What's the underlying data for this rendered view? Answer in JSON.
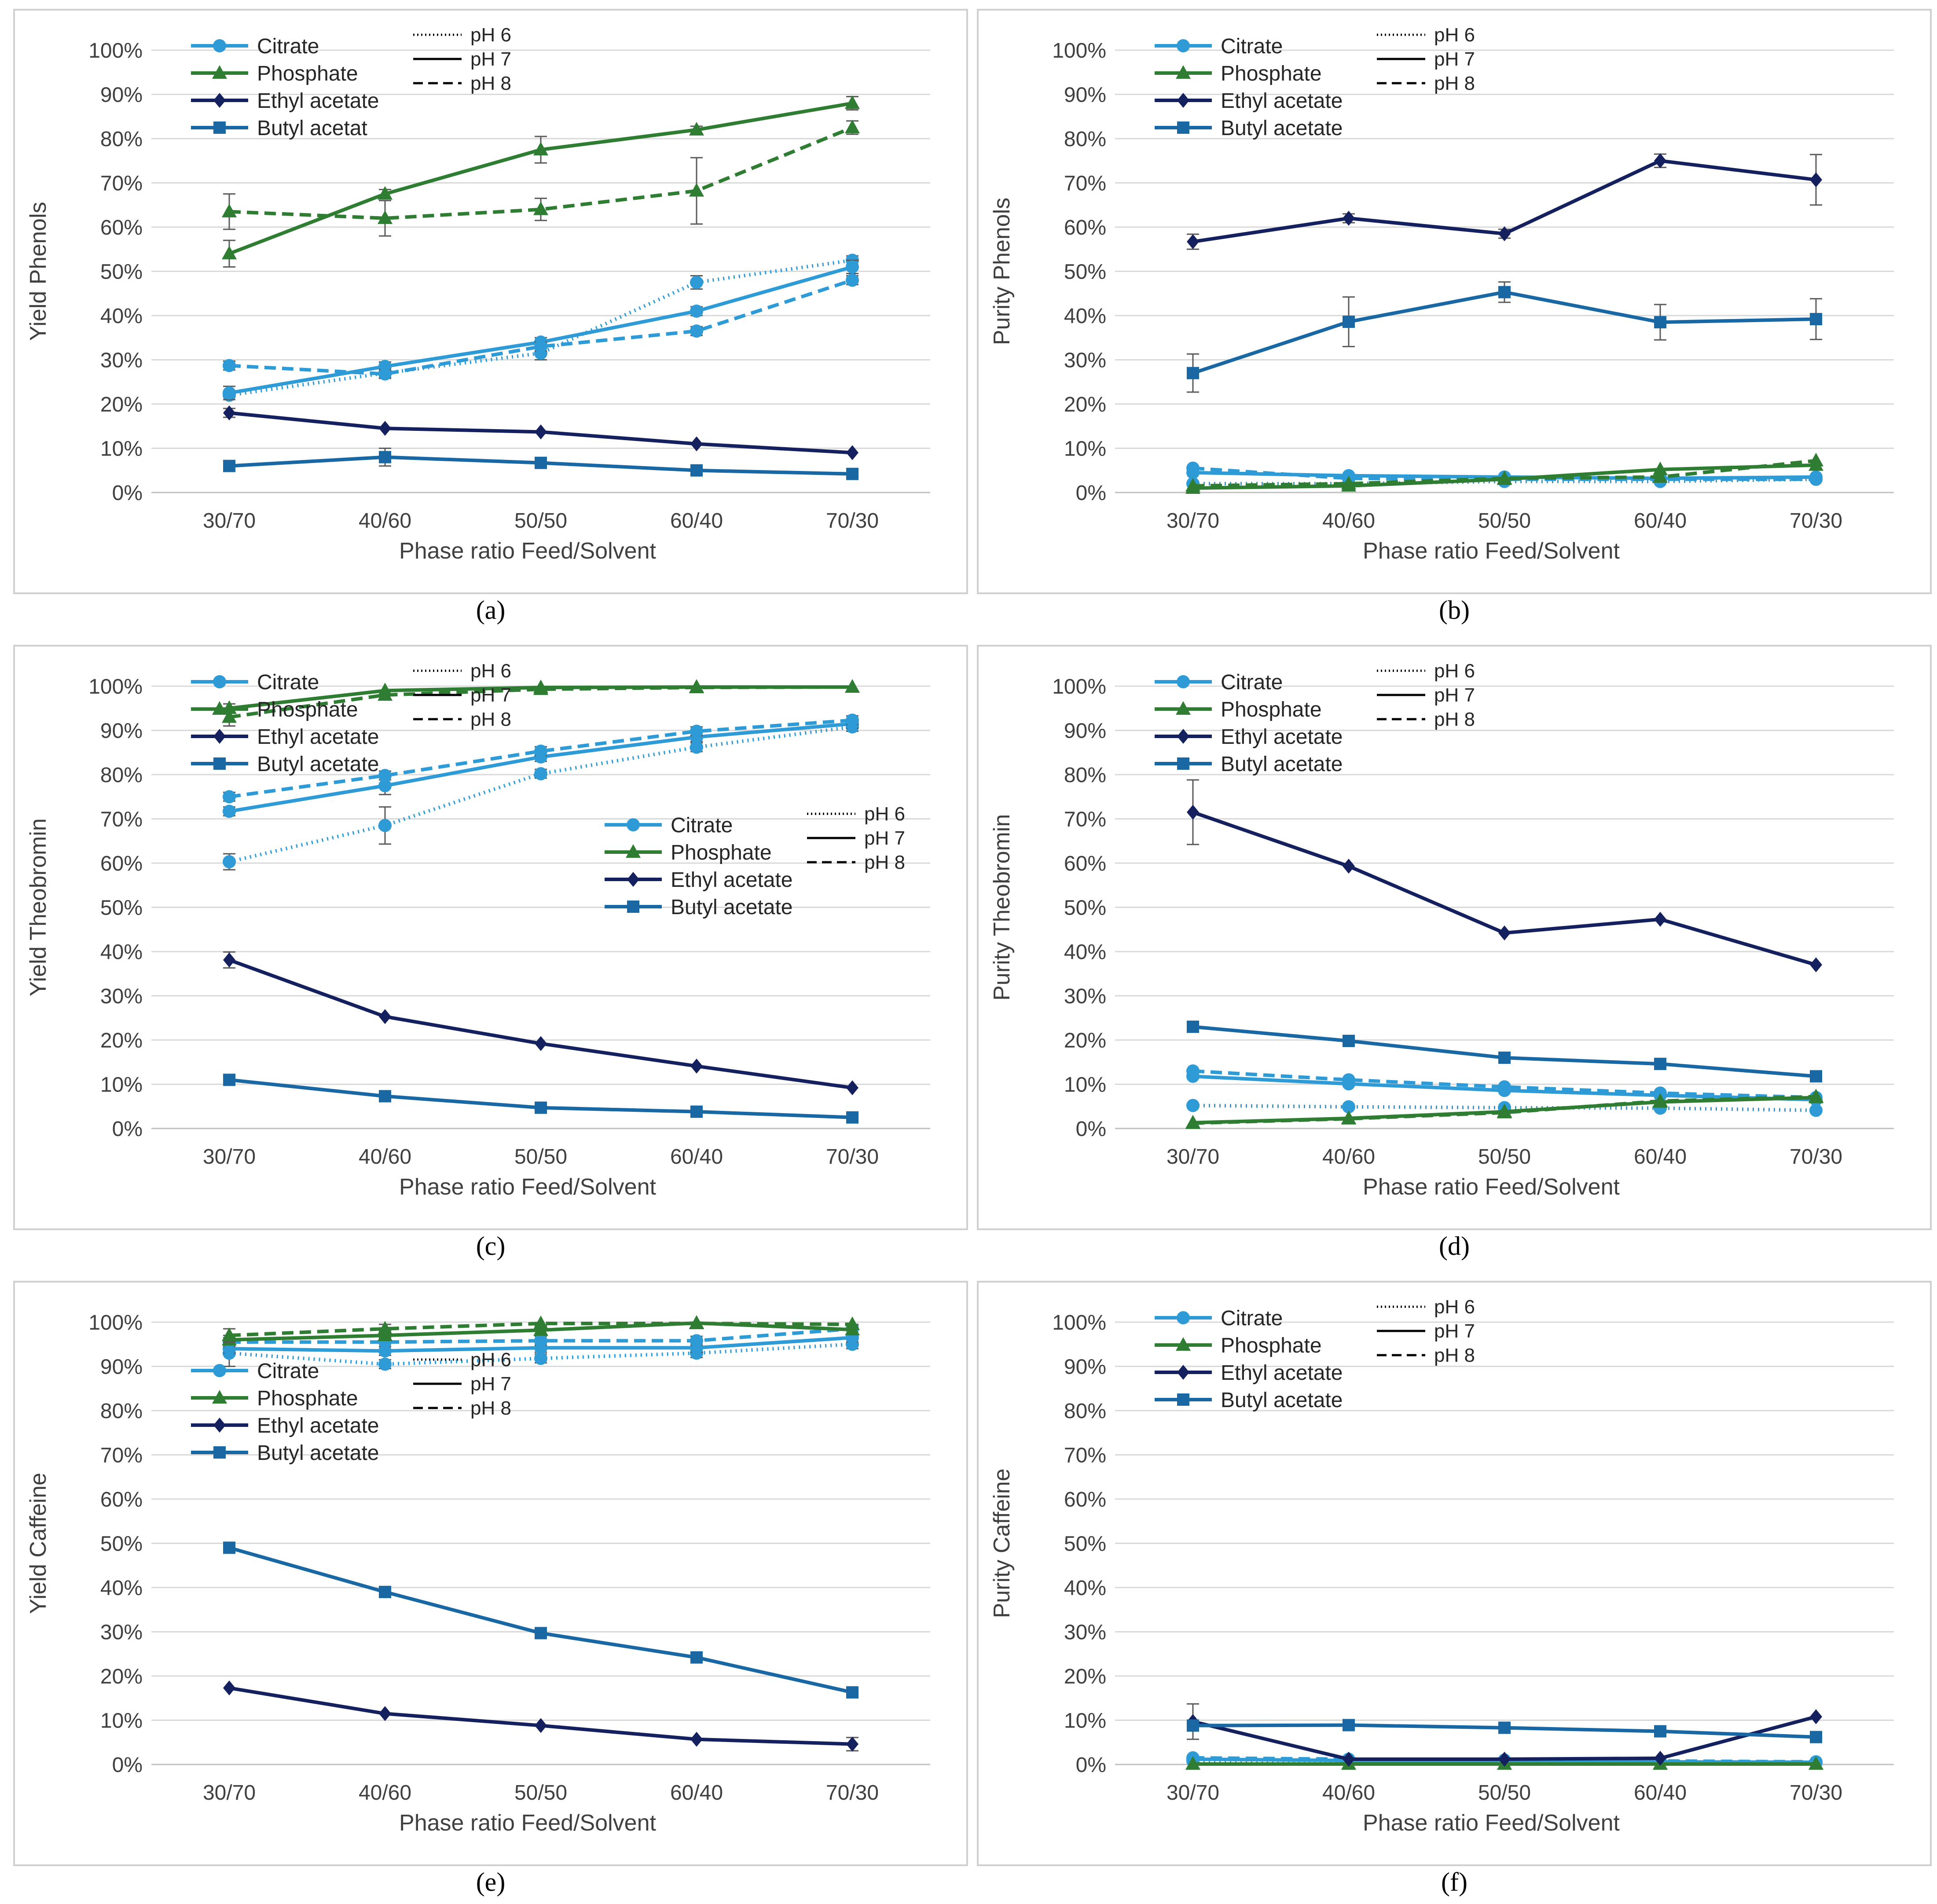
{
  "common": {
    "categories": [
      "30/70",
      "40/60",
      "50/50",
      "60/40",
      "70/30"
    ],
    "xlabel": "Phase ratio Feed/Solvent",
    "yticks": [
      "0%",
      "10%",
      "20%",
      "30%",
      "40%",
      "50%",
      "60%",
      "70%",
      "80%",
      "90%",
      "100%"
    ],
    "ylim": [
      0,
      100
    ],
    "colors": {
      "Citrate": "#2e9bd6",
      "Phosphate": "#2e7d32",
      "Ethyl acetate": "#14215e",
      "Butyl acetate": "#1a68a3",
      "error_bar": "#595959"
    },
    "line_style_legend": [
      {
        "label": "pH 6",
        "style": "dotted"
      },
      {
        "label": "pH 7",
        "style": "solid"
      },
      {
        "label": "pH 8",
        "style": "dashed"
      }
    ]
  },
  "chart_data": [
    {
      "type": "line",
      "panel_label": "(a)",
      "ylabel": "Yield Phenols",
      "xlabel": "Phase ratio Feed/Solvent",
      "legend_entries": [
        "Citrate",
        "Phosphate",
        "Ethyl acetate",
        "Butyl acetat"
      ],
      "series": [
        {
          "name": "Citrate",
          "ph": "pH 6",
          "values": [
            22,
            27,
            31.5,
            47.5,
            52.5
          ],
          "errors": [
            1,
            1,
            1.5,
            1.5,
            1
          ]
        },
        {
          "name": "Citrate",
          "ph": "pH 7",
          "values": [
            22.5,
            28.5,
            34,
            41,
            51
          ],
          "errors": [
            1.5,
            1,
            1,
            1,
            1.5
          ]
        },
        {
          "name": "Citrate",
          "ph": "pH 8",
          "values": [
            28.7,
            26.8,
            33,
            36.5,
            48
          ],
          "errors": [
            1,
            1,
            1,
            1,
            1
          ]
        },
        {
          "name": "Phosphate",
          "ph": "pH 7",
          "values": [
            54,
            67.5,
            77.5,
            82,
            88
          ],
          "errors": [
            3,
            1,
            3,
            0.8,
            1.5
          ]
        },
        {
          "name": "Phosphate",
          "ph": "pH 8",
          "values": [
            63.5,
            62,
            64,
            68.2,
            82.5
          ],
          "errors": [
            4,
            4,
            2.5,
            7.5,
            1.5
          ]
        },
        {
          "name": "Ethyl acetate",
          "ph": "pH 7",
          "values": [
            18,
            14.5,
            13.7,
            11,
            9
          ],
          "errors": [
            1,
            0.5,
            0.5,
            0.5,
            0.5
          ]
        },
        {
          "name": "Butyl acetate",
          "ph": "pH 7",
          "values": [
            6,
            8,
            6.7,
            5,
            4.2
          ],
          "errors": [
            0.5,
            2,
            0.5,
            0.5,
            0.5
          ]
        }
      ]
    },
    {
      "type": "line",
      "panel_label": "(b)",
      "ylabel": "Purity Phenols",
      "xlabel": "Phase ratio Feed/Solvent",
      "legend_entries": [
        "Citrate",
        "Phosphate",
        "Ethyl acetate",
        "Butyl acetate"
      ],
      "series": [
        {
          "name": "Citrate",
          "ph": "pH 6",
          "values": [
            2,
            2,
            2.5,
            2.5,
            3
          ],
          "errors": [
            0,
            0,
            0,
            0,
            0
          ]
        },
        {
          "name": "Citrate",
          "ph": "pH 7",
          "values": [
            4.5,
            3.8,
            3.5,
            3.2,
            3.5
          ],
          "errors": [
            0.5,
            0.5,
            0.5,
            0.5,
            0.5
          ]
        },
        {
          "name": "Citrate",
          "ph": "pH 8",
          "values": [
            5.5,
            3.2,
            3,
            3,
            3
          ],
          "errors": [
            0.5,
            0.5,
            0.5,
            0.5,
            0.5
          ]
        },
        {
          "name": "Phosphate",
          "ph": "pH 7",
          "values": [
            1,
            1.5,
            3,
            5.2,
            6.2
          ],
          "errors": [
            0.3,
            0.3,
            0.3,
            0.5,
            0.5
          ]
        },
        {
          "name": "Phosphate",
          "ph": "pH 8",
          "values": [
            1.5,
            2,
            3.2,
            3.5,
            7.2
          ],
          "errors": [
            0.3,
            0.3,
            0.3,
            0.5,
            0.5
          ]
        },
        {
          "name": "Ethyl acetate",
          "ph": "pH 7",
          "values": [
            56.7,
            62,
            58.5,
            75,
            70.7
          ],
          "errors": [
            1.7,
            1,
            1,
            1.5,
            5.7
          ]
        },
        {
          "name": "Butyl acetate",
          "ph": "pH 7",
          "values": [
            27,
            38.6,
            45.3,
            38.5,
            39.2
          ],
          "errors": [
            4.3,
            5.6,
            2.3,
            4,
            4.6
          ]
        }
      ]
    },
    {
      "type": "line",
      "panel_label": "(c)",
      "ylabel": "Yield Theobromin",
      "xlabel": "Phase ratio Feed/Solvent",
      "legend_entries": [
        "Citrate",
        "Phosphate",
        "Ethyl acetate",
        "Butyl acetate"
      ],
      "series": [
        {
          "name": "Citrate",
          "ph": "pH 6",
          "values": [
            60.3,
            68.5,
            80.2,
            86.2,
            90.8
          ],
          "errors": [
            1.8,
            4.2,
            1,
            1,
            1
          ]
        },
        {
          "name": "Citrate",
          "ph": "pH 7",
          "values": [
            71.7,
            77.5,
            84,
            88.5,
            91.5
          ],
          "errors": [
            1,
            2,
            1,
            1,
            1
          ]
        },
        {
          "name": "Citrate",
          "ph": "pH 8",
          "values": [
            75,
            79.8,
            85.3,
            89.8,
            92.3
          ],
          "errors": [
            1,
            1,
            1,
            1,
            1
          ]
        },
        {
          "name": "Phosphate",
          "ph": "pH 7",
          "values": [
            95,
            99,
            99.7,
            99.8,
            99.8
          ],
          "errors": [
            1,
            0.5,
            0.3,
            0.2,
            0.2
          ]
        },
        {
          "name": "Phosphate",
          "ph": "pH 8",
          "values": [
            93,
            98,
            99.3,
            99.7,
            99.8
          ],
          "errors": [
            2,
            0.5,
            0.3,
            0.2,
            0.2
          ]
        },
        {
          "name": "Ethyl acetate",
          "ph": "pH 7",
          "values": [
            38.1,
            25.3,
            19.2,
            14.1,
            9.2
          ],
          "errors": [
            1.8,
            0.5,
            0.5,
            0.5,
            0.5
          ]
        },
        {
          "name": "Butyl acetate",
          "ph": "pH 7",
          "values": [
            11,
            7.3,
            4.7,
            3.8,
            2.5
          ],
          "errors": [
            0.5,
            0.5,
            0.5,
            0.5,
            0.5
          ]
        }
      ]
    },
    {
      "type": "line",
      "panel_label": "(d)",
      "ylabel": "Purity Theobromin",
      "xlabel": "Phase ratio Feed/Solvent",
      "legend_entries": [
        "Citrate",
        "Phosphate",
        "Ethyl acetate",
        "Butyl acetate"
      ],
      "series": [
        {
          "name": "Citrate",
          "ph": "pH 6",
          "values": [
            5.2,
            4.9,
            4.7,
            4.6,
            4.1
          ],
          "errors": [
            0.3,
            0.3,
            0.3,
            0.3,
            0.3
          ]
        },
        {
          "name": "Citrate",
          "ph": "pH 7",
          "values": [
            11.8,
            10.1,
            8.6,
            7.5,
            6.5
          ],
          "errors": [
            0.5,
            0.5,
            0.5,
            0.5,
            0.5
          ]
        },
        {
          "name": "Citrate",
          "ph": "pH 8",
          "values": [
            13,
            11,
            9.4,
            8,
            7
          ],
          "errors": [
            0.5,
            0.5,
            0.5,
            0.5,
            0.5
          ]
        },
        {
          "name": "Phosphate",
          "ph": "pH 7",
          "values": [
            1.3,
            2.3,
            3.8,
            6,
            7
          ],
          "errors": [
            0.3,
            0.3,
            0.3,
            0.3,
            0.3
          ]
        },
        {
          "name": "Phosphate",
          "ph": "pH 8",
          "values": [
            1.2,
            2.2,
            3.6,
            6.2,
            7.2
          ],
          "errors": [
            0.3,
            0.3,
            0.3,
            0.3,
            0.3
          ]
        },
        {
          "name": "Ethyl acetate",
          "ph": "pH 7",
          "values": [
            71.5,
            59.3,
            44.2,
            47.3,
            37
          ],
          "errors": [
            7.3,
            0.5,
            0.5,
            0.5,
            0.5
          ]
        },
        {
          "name": "Butyl acetate",
          "ph": "pH 7",
          "values": [
            23,
            19.8,
            16,
            14.6,
            11.8
          ],
          "errors": [
            0.5,
            0.5,
            0.5,
            0.5,
            0.5
          ]
        }
      ]
    },
    {
      "type": "line",
      "panel_label": "(e)",
      "ylabel": "Yield Caffeine",
      "xlabel": "Phase ratio Feed/Solvent",
      "legend_entries": [
        "Citrate",
        "Phosphate",
        "Ethyl acetate",
        "Butyl acetate"
      ],
      "series": [
        {
          "name": "Citrate",
          "ph": "pH 6",
          "values": [
            93,
            90.5,
            91.8,
            93,
            95
          ],
          "errors": [
            3,
            1,
            1,
            1,
            1
          ]
        },
        {
          "name": "Citrate",
          "ph": "pH 7",
          "values": [
            94,
            93.5,
            94.2,
            94.2,
            96.5
          ],
          "errors": [
            1,
            1,
            1,
            1,
            1
          ]
        },
        {
          "name": "Citrate",
          "ph": "pH 8",
          "values": [
            95.5,
            95.5,
            95.8,
            95.8,
            98.5
          ],
          "errors": [
            1,
            1,
            1,
            1,
            1
          ]
        },
        {
          "name": "Phosphate",
          "ph": "pH 7",
          "values": [
            96,
            97,
            98.2,
            99.8,
            98.3
          ],
          "errors": [
            1,
            1,
            1,
            0.3,
            1
          ]
        },
        {
          "name": "Phosphate",
          "ph": "pH 8",
          "values": [
            97,
            98.5,
            99.7,
            99.7,
            99.5
          ],
          "errors": [
            1.5,
            1,
            0.5,
            0.3,
            0.5
          ]
        },
        {
          "name": "Ethyl acetate",
          "ph": "pH 7",
          "values": [
            17.3,
            11.5,
            8.8,
            5.7,
            4.6
          ],
          "errors": [
            0.5,
            0.5,
            0.5,
            0.5,
            1.5
          ]
        },
        {
          "name": "Butyl acetate",
          "ph": "pH 7",
          "values": [
            49,
            39,
            29.7,
            24.2,
            16.3
          ],
          "errors": [
            0.5,
            0.5,
            0.5,
            0.5,
            0.5
          ]
        }
      ]
    },
    {
      "type": "line",
      "panel_label": "(f)",
      "ylabel": "Purity Caffeine",
      "xlabel": "Phase ratio Feed/Solvent",
      "legend_entries": [
        "Citrate",
        "Phosphate",
        "Ethyl acetate",
        "Butyl acetate"
      ],
      "series": [
        {
          "name": "Citrate",
          "ph": "pH 6",
          "values": [
            0.8,
            0.5,
            0.6,
            0.5,
            0.4
          ],
          "errors": [
            0,
            0,
            0,
            0,
            0
          ]
        },
        {
          "name": "Citrate",
          "ph": "pH 7",
          "values": [
            1.2,
            0.9,
            0.8,
            0.6,
            0.5
          ],
          "errors": [
            0,
            0,
            0,
            0,
            0
          ]
        },
        {
          "name": "Citrate",
          "ph": "pH 8",
          "values": [
            1.5,
            1.2,
            1,
            0.8,
            0.6
          ],
          "errors": [
            0,
            0,
            0,
            0,
            0
          ]
        },
        {
          "name": "Phosphate",
          "ph": "pH 7",
          "values": [
            0.1,
            0.1,
            0.1,
            0.1,
            0.1
          ],
          "errors": [
            0,
            0,
            0,
            0,
            0
          ]
        },
        {
          "name": "Phosphate",
          "ph": "pH 8",
          "values": [
            0.1,
            0.1,
            0.1,
            0.1,
            0.1
          ],
          "errors": [
            0,
            0,
            0,
            0,
            0
          ]
        },
        {
          "name": "Ethyl acetate",
          "ph": "pH 7",
          "values": [
            9.7,
            1.2,
            1.2,
            1.4,
            10.8
          ],
          "errors": [
            4,
            0.5,
            0.5,
            0.5,
            0.5
          ]
        },
        {
          "name": "Butyl acetate",
          "ph": "pH 7",
          "values": [
            8.8,
            8.9,
            8.3,
            7.5,
            6.2
          ],
          "errors": [
            0.5,
            0.5,
            0.5,
            0.5,
            0.5
          ]
        }
      ]
    }
  ]
}
